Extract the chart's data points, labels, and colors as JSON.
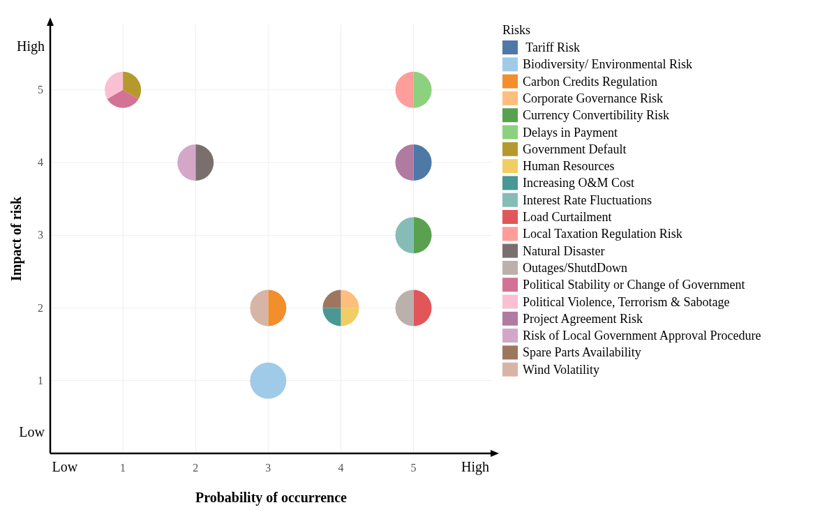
{
  "chart_data": {
    "type": "scatter",
    "xlabel": "Probability of occurrence",
    "ylabel": "Impact of risk",
    "legend_title": "Risks",
    "legend": "right",
    "grid": true,
    "marker": "circle",
    "xlim": [
      0,
      6.08
    ],
    "ylim": [
      0,
      5.9
    ],
    "xticks": [
      {
        "value": 0.2,
        "label": "Low"
      },
      1,
      2,
      3,
      4,
      5,
      {
        "value": 5.85,
        "label": "High"
      }
    ],
    "yticks": [
      {
        "value": 0.3,
        "label": "Low"
      },
      1,
      2,
      3,
      4,
      5,
      {
        "value": 5.6,
        "label": "High"
      }
    ],
    "series": [
      {
        "name": " Tariff Risk",
        "color": "#4e79a7",
        "x": [
          5
        ],
        "values": [
          4
        ]
      },
      {
        "name": "Biodiversity/ Environmental Risk",
        "color": "#a0cbe8",
        "x": [
          3
        ],
        "values": [
          1
        ]
      },
      {
        "name": "Carbon Credits Regulation",
        "color": "#f28e2b",
        "x": [
          3
        ],
        "values": [
          2
        ]
      },
      {
        "name": "Corporate Governance Risk",
        "color": "#ffbe7d",
        "x": [
          4
        ],
        "values": [
          2
        ]
      },
      {
        "name": "Currency Convertibility Risk",
        "color": "#59a14f",
        "x": [
          5
        ],
        "values": [
          3
        ]
      },
      {
        "name": "Delays in Payment",
        "color": "#8cd17d",
        "x": [
          5
        ],
        "values": [
          5
        ]
      },
      {
        "name": "Government Default",
        "color": "#b6992d",
        "x": [
          1
        ],
        "values": [
          5
        ]
      },
      {
        "name": "Human Resources",
        "color": "#f1ce63",
        "x": [
          4
        ],
        "values": [
          2
        ]
      },
      {
        "name": "Increasing O&M Cost",
        "color": "#499894",
        "x": [
          4
        ],
        "values": [
          2
        ]
      },
      {
        "name": "Interest Rate Fluctuations",
        "color": "#86bcb6",
        "x": [
          5
        ],
        "values": [
          3
        ]
      },
      {
        "name": "Load Curtailment",
        "color": "#e15759",
        "x": [
          5
        ],
        "values": [
          2
        ]
      },
      {
        "name": "Local Taxation Regulation Risk",
        "color": "#ff9d9a",
        "x": [
          5
        ],
        "values": [
          5
        ]
      },
      {
        "name": "Natural Disaster",
        "color": "#79706e",
        "x": [
          2
        ],
        "values": [
          4
        ]
      },
      {
        "name": "Outages/ShutdDown",
        "color": "#bab0ac",
        "x": [
          5
        ],
        "values": [
          2
        ]
      },
      {
        "name": "Political Stability or Change of Government",
        "color": "#d37295",
        "x": [
          1
        ],
        "values": [
          5
        ]
      },
      {
        "name": "Political Violence, Terrorism & Sabotage",
        "color": "#fabfd2",
        "x": [
          1
        ],
        "values": [
          5
        ]
      },
      {
        "name": "Project Agreement Risk",
        "color": "#b07aa1",
        "x": [
          5
        ],
        "values": [
          4
        ]
      },
      {
        "name": "Risk of Local Government Approval Procedure",
        "color": "#d4a6c8",
        "x": [
          2
        ],
        "values": [
          4
        ]
      },
      {
        "name": "Spare Parts Availability",
        "color": "#9d7660",
        "x": [
          4
        ],
        "values": [
          2
        ]
      },
      {
        "name": "Wind Volatility",
        "color": "#d7b5a6",
        "x": [
          3
        ],
        "values": [
          2
        ]
      }
    ]
  }
}
